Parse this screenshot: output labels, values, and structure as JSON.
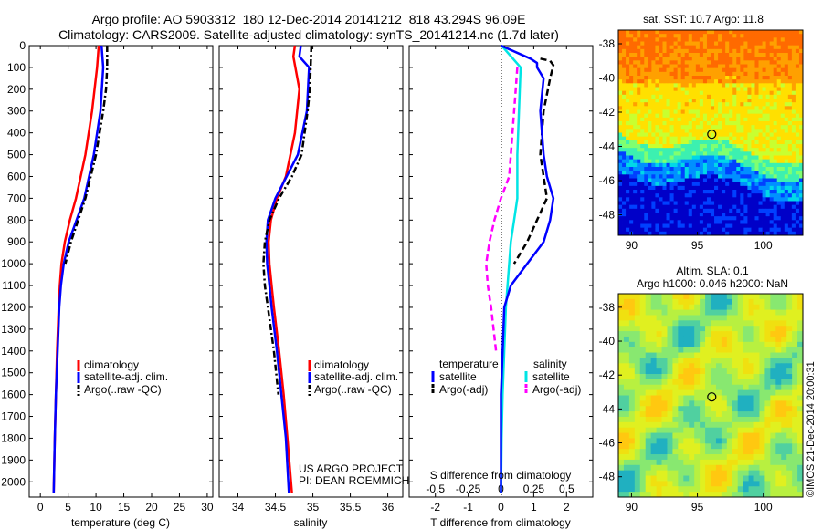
{
  "header": {
    "title_line1": "Argo profile: AO 5903312_180 12-Dec-2014 20141212_818 43.294S 96.09E",
    "title_line2": "Climatology: CARS2009. Satellite-adjusted climatology: synTS_20141214.nc (1.7d later)"
  },
  "colors": {
    "climatology": "#ff0000",
    "satellite": "#0000ff",
    "argo": "#000000",
    "salinity_satellite": "#00e5e5",
    "salinity_argo": "#ff00ff"
  },
  "credits": {
    "line1": "US ARGO PROJECT",
    "line2": "PI: DEAN ROEMMICH"
  },
  "side_stamp": "©IMOS 21-Dec-2014 20:00:31",
  "chart_data": [
    {
      "type": "line",
      "name": "temperature-profile",
      "xlabel": "temperature (deg C)",
      "xlim": [
        -2,
        31
      ],
      "xticks": [
        0,
        5,
        10,
        15,
        20,
        25,
        30
      ],
      "ylim": [
        2070,
        0
      ],
      "yticks": [
        0,
        100,
        200,
        300,
        400,
        500,
        600,
        700,
        800,
        900,
        1000,
        1100,
        1200,
        1300,
        1400,
        1500,
        1600,
        1700,
        1800,
        1900,
        2000
      ],
      "legend": [
        "climatology",
        "satellite-adj. clim.",
        "Argo(..raw -QC)"
      ],
      "legend_position": "lower-center",
      "series": [
        {
          "name": "climatology",
          "style": "solid",
          "depth": [
            0,
            100,
            300,
            500,
            700,
            800,
            900,
            1000,
            1100,
            1200,
            1400,
            1600,
            1800,
            2050
          ],
          "values": [
            10.5,
            10.2,
            9.3,
            8.1,
            6.4,
            5.3,
            4.4,
            3.8,
            3.5,
            3.3,
            3.0,
            2.8,
            2.6,
            2.4
          ]
        },
        {
          "name": "satellite-adj. clim.",
          "style": "solid",
          "depth": [
            0,
            100,
            300,
            500,
            700,
            800,
            900,
            1000,
            1100,
            1200,
            1400,
            1600,
            1800,
            2050
          ],
          "values": [
            11.0,
            11.3,
            10.8,
            9.6,
            7.9,
            6.5,
            5.1,
            4.2,
            3.7,
            3.4,
            3.1,
            2.8,
            2.6,
            2.4
          ]
        },
        {
          "name": "Argo(..raw -QC)",
          "style": "dashdot",
          "depth": [
            0,
            100,
            200,
            300,
            500,
            700,
            800,
            900,
            1000
          ],
          "values": [
            12.0,
            12.0,
            11.8,
            11.3,
            10.0,
            8.1,
            6.8,
            5.5,
            4.5
          ]
        }
      ]
    },
    {
      "type": "line",
      "name": "salinity-profile",
      "xlabel": "salinity",
      "xlim": [
        33.75,
        36.2
      ],
      "xticks": [
        34,
        34.5,
        35,
        35.5,
        36
      ],
      "ylim": [
        2070,
        0
      ],
      "legend": [
        "climatology",
        "satellite-adj. clim.",
        "Argo(..raw -QC)"
      ],
      "legend_position": "lower-right",
      "series": [
        {
          "name": "climatology",
          "style": "solid",
          "depth": [
            0,
            50,
            200,
            400,
            600,
            700,
            800,
            900,
            1000,
            1100,
            1200,
            1400,
            1600,
            1800,
            2050
          ],
          "values": [
            34.76,
            34.74,
            34.82,
            34.76,
            34.64,
            34.52,
            34.44,
            34.41,
            34.42,
            34.45,
            34.48,
            34.55,
            34.61,
            34.66,
            34.72
          ]
        },
        {
          "name": "satellite-adj. clim.",
          "style": "solid",
          "depth": [
            0,
            50,
            100,
            300,
            500,
            600,
            700,
            800,
            900,
            1000,
            1100,
            1200,
            1400,
            1600,
            1800,
            2050
          ],
          "values": [
            34.84,
            34.82,
            34.95,
            34.92,
            34.8,
            34.65,
            34.5,
            34.4,
            34.38,
            34.39,
            34.42,
            34.45,
            34.52,
            34.58,
            34.64,
            34.68
          ]
        },
        {
          "name": "Argo(..raw -QC)",
          "style": "dashdot",
          "depth": [
            0,
            100,
            200,
            300,
            500,
            600,
            700,
            800,
            900,
            1000,
            1100,
            1200,
            1400,
            1600
          ],
          "values": [
            34.98,
            34.97,
            34.96,
            34.93,
            34.85,
            34.72,
            34.55,
            34.42,
            34.36,
            34.34,
            34.36,
            34.4,
            34.48,
            34.54
          ]
        }
      ]
    },
    {
      "type": "line",
      "name": "difference-profile",
      "xlabel": "T difference from climatology",
      "x2label": "S difference from climatology",
      "xlim": [
        -2.8,
        2.8
      ],
      "xticks": [
        -2,
        -1,
        0,
        1,
        2
      ],
      "x2ticks": [
        "-0.5",
        "-0.25",
        "0",
        "0.25",
        "0.5"
      ],
      "ylim": [
        2070,
        0
      ],
      "legend_groups": [
        "temperature",
        "salinity"
      ],
      "legend": [
        "satellite",
        "Argo(-adj)",
        "satellite",
        "Argo(-adj)"
      ],
      "series": [
        {
          "name": "temperature satellite",
          "style": "solid",
          "depth": [
            0,
            60,
            80,
            100,
            150,
            300,
            500,
            600,
            700,
            800,
            900,
            1000,
            1100,
            1200,
            1400,
            1600,
            1800,
            2050
          ],
          "values": [
            0.0,
            0.9,
            1.1,
            1.1,
            1.3,
            1.2,
            1.3,
            1.4,
            1.6,
            1.5,
            1.3,
            0.8,
            0.3,
            0.1,
            0.05,
            0.0,
            0.0,
            0.0
          ]
        },
        {
          "name": "temperature Argo(-adj)",
          "style": "dashed",
          "depth": [
            60,
            70,
            90,
            150,
            300,
            500,
            600,
            700,
            800,
            900,
            1000
          ],
          "values": [
            1.2,
            1.5,
            1.6,
            1.5,
            1.3,
            1.2,
            1.3,
            1.4,
            1.1,
            0.8,
            0.4
          ]
        },
        {
          "name": "salinity satellite",
          "style": "solid",
          "depth": [
            0,
            100,
            300,
            500,
            700,
            800,
            900,
            1000,
            1100,
            1200,
            1400,
            1600,
            1800,
            2050
          ],
          "values": [
            0.02,
            0.6,
            0.55,
            0.5,
            0.5,
            0.4,
            0.3,
            0.25,
            0.2,
            0.15,
            0.1,
            0.05,
            0.02,
            0.0
          ]
        },
        {
          "name": "salinity Argo(-adj)",
          "style": "dashed",
          "depth": [
            100,
            200,
            400,
            600,
            700,
            800,
            900,
            1000,
            1100,
            1200,
            1400
          ],
          "values": [
            0.5,
            0.45,
            0.35,
            0.25,
            0.0,
            -0.2,
            -0.35,
            -0.45,
            -0.4,
            -0.3,
            -0.15
          ]
        }
      ]
    },
    {
      "type": "heatmap",
      "name": "sst-map",
      "title": "sat. SST: 10.7  Argo: 11.8",
      "xticks": [
        90,
        95,
        100
      ],
      "yticks": [
        -38,
        -40,
        -42,
        -44,
        -46,
        -48
      ],
      "xlim": [
        89,
        103
      ],
      "ylim": [
        -49.2,
        -37.2
      ],
      "marker": {
        "lon": 96.09,
        "lat": -43.29
      }
    },
    {
      "type": "heatmap",
      "name": "sla-map",
      "title_line1": "Altim. SLA: 0.1",
      "title_line2": "Argo h1000: 0.046 h2000: NaN",
      "xticks": [
        90,
        95,
        100
      ],
      "yticks": [
        -38,
        -40,
        -42,
        -44,
        -46,
        -48
      ],
      "xlim": [
        89,
        103
      ],
      "ylim": [
        -49.2,
        -37.2
      ],
      "marker": {
        "lon": 96.09,
        "lat": -43.29
      }
    }
  ]
}
